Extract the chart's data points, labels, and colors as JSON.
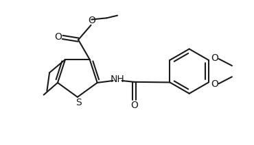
{
  "bg_color": "#ffffff",
  "line_color": "#1a1a1a",
  "lw": 1.5,
  "fig_width": 3.7,
  "fig_height": 2.12,
  "dpi": 100,
  "xlim": [
    0,
    10
  ],
  "ylim": [
    0,
    5.4
  ]
}
